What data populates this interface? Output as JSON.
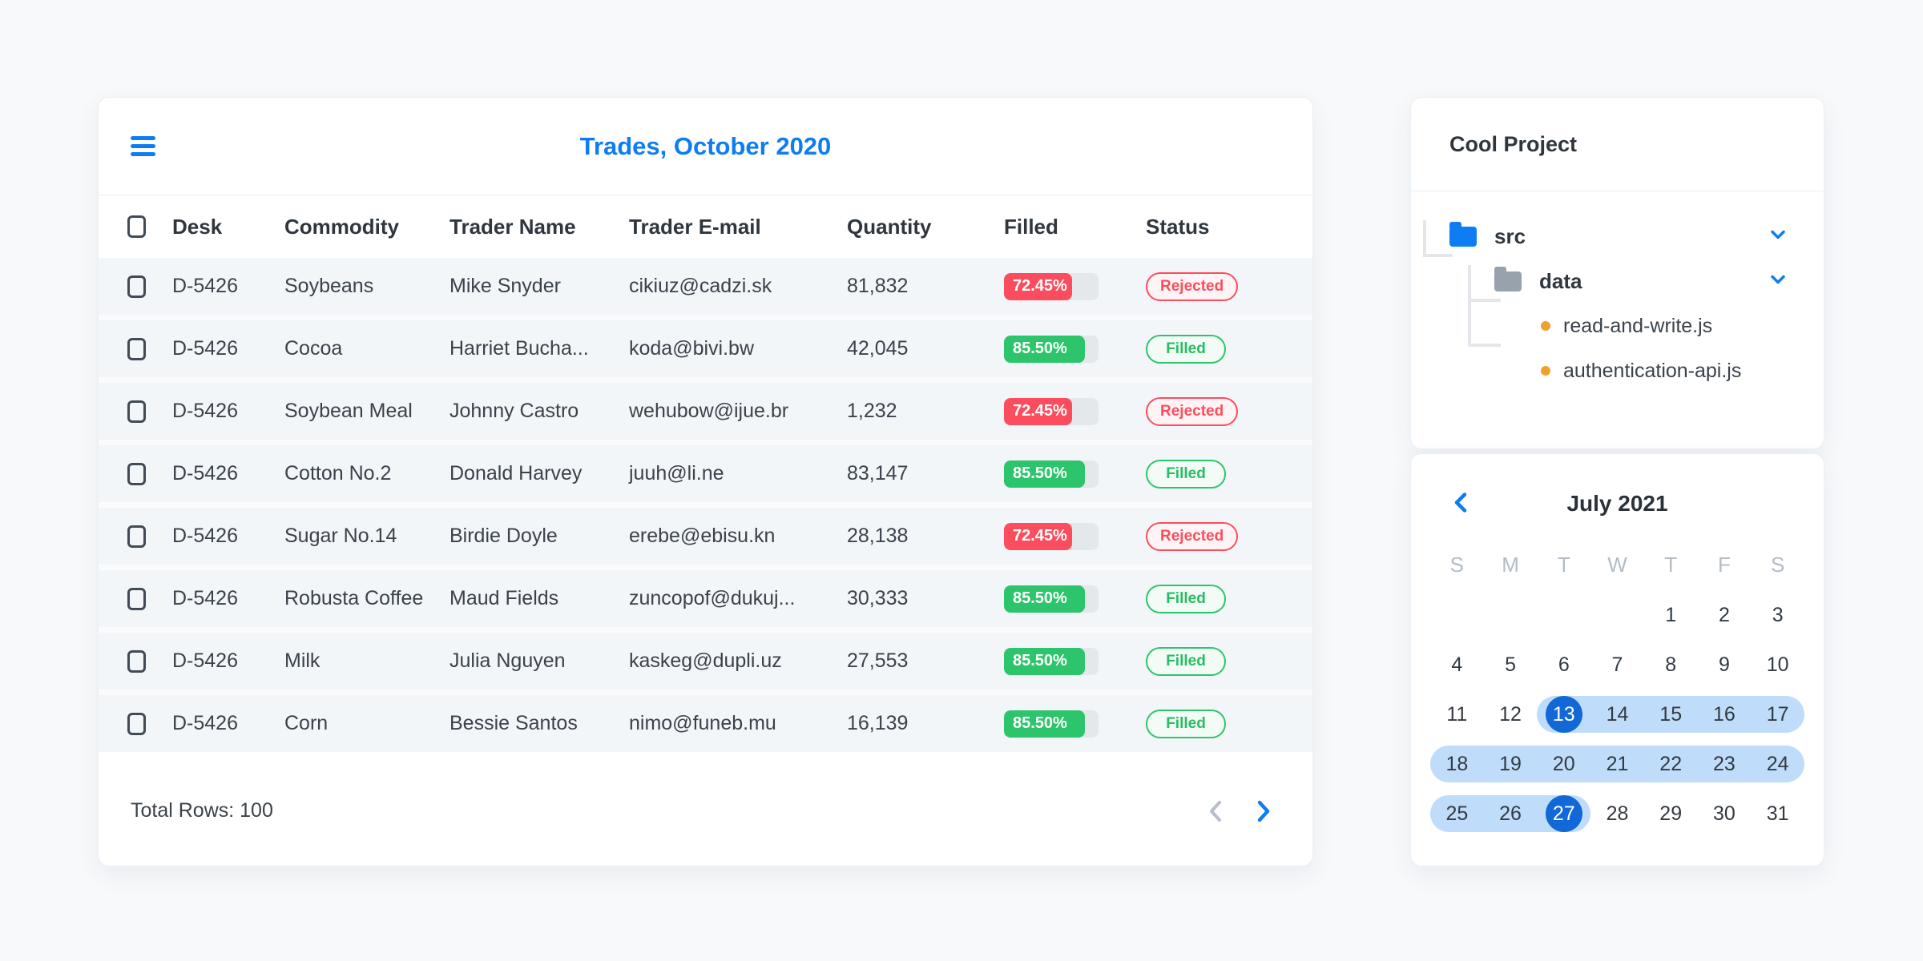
{
  "colors": {
    "accent_blue": "#0F7DF2",
    "selected_day_blue": "#1168D6",
    "range_band_blue": "#BFDDFA",
    "rejected_red": "#FB4D5D",
    "filled_green": "#2CC56B"
  },
  "table": {
    "title": "Trades, October 2020",
    "columns": [
      "Desk",
      "Commodity",
      "Trader Name",
      "Trader E-mail",
      "Quantity",
      "Filled",
      "Status"
    ],
    "rows": [
      {
        "desk": "D-5426",
        "commodity": "Soybeans",
        "trader_name": "Mike Snyder",
        "trader_email": "cikiuz@cadzi.sk",
        "quantity": "81,832",
        "filled_label": "72.45%",
        "filled_value": 72.45,
        "status": "Rejected"
      },
      {
        "desk": "D-5426",
        "commodity": "Cocoa",
        "trader_name": "Harriet Bucha...",
        "trader_email": "koda@bivi.bw",
        "quantity": "42,045",
        "filled_label": "85.50%",
        "filled_value": 85.5,
        "status": "Filled"
      },
      {
        "desk": "D-5426",
        "commodity": "Soybean Meal",
        "trader_name": "Johnny Castro",
        "trader_email": "wehubow@ijue.br",
        "quantity": "1,232",
        "filled_label": "72.45%",
        "filled_value": 72.45,
        "status": "Rejected"
      },
      {
        "desk": "D-5426",
        "commodity": "Cotton No.2",
        "trader_name": "Donald Harvey",
        "trader_email": "juuh@li.ne",
        "quantity": "83,147",
        "filled_label": "85.50%",
        "filled_value": 85.5,
        "status": "Filled"
      },
      {
        "desk": "D-5426",
        "commodity": "Sugar No.14",
        "trader_name": "Birdie Doyle",
        "trader_email": "erebe@ebisu.kn",
        "quantity": "28,138",
        "filled_label": "72.45%",
        "filled_value": 72.45,
        "status": "Rejected"
      },
      {
        "desk": "D-5426",
        "commodity": "Robusta Coffee",
        "trader_name": "Maud Fields",
        "trader_email": "zuncopof@dukuj...",
        "quantity": "30,333",
        "filled_label": "85.50%",
        "filled_value": 85.5,
        "status": "Filled"
      },
      {
        "desk": "D-5426",
        "commodity": "Milk",
        "trader_name": "Julia Nguyen",
        "trader_email": "kaskeg@dupli.uz",
        "quantity": "27,553",
        "filled_label": "85.50%",
        "filled_value": 85.5,
        "status": "Filled"
      },
      {
        "desk": "D-5426",
        "commodity": "Corn",
        "trader_name": "Bessie Santos",
        "trader_email": "nimo@funeb.mu",
        "quantity": "16,139",
        "filled_label": "85.50%",
        "filled_value": 85.5,
        "status": "Filled"
      }
    ],
    "footer": {
      "total_rows_label": "Total Rows: 100"
    }
  },
  "file_tree": {
    "title": "Cool Project",
    "nodes": [
      {
        "label": "src",
        "type": "folder",
        "color": "blue",
        "chevron": "chevron-down-icon",
        "level": 0
      },
      {
        "label": "data",
        "type": "folder",
        "color": "grey",
        "chevron": "chevron-down-icon",
        "level": 1
      },
      {
        "label": "read-and-write.js",
        "type": "file",
        "level": 2
      },
      {
        "label": "authentication-api.js",
        "type": "file",
        "level": 2
      }
    ]
  },
  "calendar": {
    "title": "July 2021",
    "day_headers": [
      "S",
      "M",
      "T",
      "W",
      "T",
      "F",
      "S"
    ],
    "weeks": [
      [
        null,
        null,
        null,
        null,
        1,
        2,
        3
      ],
      [
        4,
        5,
        6,
        7,
        8,
        9,
        10
      ],
      [
        11,
        12,
        13,
        14,
        15,
        16,
        17
      ],
      [
        18,
        19,
        20,
        21,
        22,
        23,
        24
      ],
      [
        25,
        26,
        27,
        28,
        29,
        30,
        31
      ]
    ],
    "range": {
      "start": 13,
      "end": 27
    },
    "selected_days": [
      13,
      27
    ]
  }
}
